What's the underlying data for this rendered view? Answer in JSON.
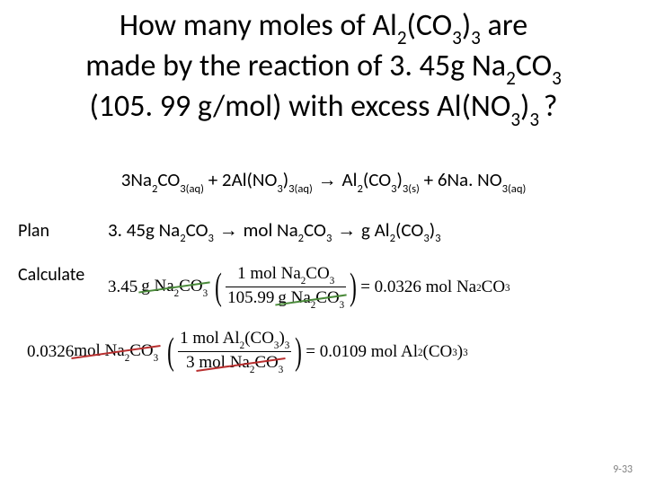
{
  "colors": {
    "text": "#000000",
    "footer": "#808080",
    "strike_green": "#4a8a3a",
    "strike_red": "#b83030",
    "background": "#ffffff"
  },
  "title": {
    "fontsize_pt": 34,
    "line1_a": "How many moles of Al",
    "line1_sub1": "2",
    "line1_b": "(CO",
    "line1_sub2": "3",
    "line1_c": ")",
    "line1_sub3": "3",
    "line1_d": " are",
    "line2_a": "made by the reaction of 3. 45g  Na",
    "line2_sub1": "2",
    "line2_b": "CO",
    "line2_sub2": "3",
    "line3_a": "(105. 99 g/mol) with excess Al(NO",
    "line3_sub1": "3",
    "line3_b": ")",
    "line3_sub2": "3 ",
    "line3_c": "?"
  },
  "equation": {
    "fontsize_pt": 21,
    "a": "3Na",
    "a_s1": "2",
    "b": "CO",
    "b_s1": "3(aq)",
    "c": " + 2Al(NO",
    "c_s1": "3",
    "d": ")",
    "d_s1": "3(aq)",
    "arrow": " → ",
    "e": "Al",
    "e_s1": "2",
    "f": "(CO",
    "f_s1": "3",
    "g": ")",
    "g_s1": "3(s)",
    "h": " + 6Na. NO",
    "h_s1": "3(aq)"
  },
  "plan": {
    "label": "Plan",
    "fontsize_pt": 21,
    "a": "3. 45g Na",
    "a_s1": "2",
    "b": "CO",
    "b_s1": "3",
    "arr1": " → ",
    "c": "mol Na",
    "c_s1": "2",
    "d": "CO",
    "d_s1": "3",
    "arr2": " → ",
    "e": "g Al",
    "e_s1": "2",
    "f": "(CO",
    "f_s1": "3",
    "g": ")",
    "g_s1": "3"
  },
  "calculate": {
    "label": "Calculate",
    "fontsize_pt": 19,
    "line1": {
      "lhs_a": "3.45",
      "lhs_unit_a": "g",
      "lhs_b": " Na",
      "lhs_s1": "2",
      "lhs_c": "CO",
      "lhs_s2": "3",
      "num_a": "1 mol Na",
      "num_s1": "2",
      "num_b": "CO",
      "num_s2": "3",
      "den_a": "105.99",
      "den_unit": "g",
      "den_b": " Na",
      "den_s1": "2",
      "den_c": "CO",
      "den_s2": "3",
      "rhs_eq": " = 0.0326 mol Na",
      "rhs_s1": "2",
      "rhs_b": "CO",
      "rhs_s2": "3",
      "strike_color": "#4a8a3a"
    },
    "line2": {
      "lhs_a": "0.0326 ",
      "lhs_unit": "mol Na",
      "lhs_s1": "2",
      "lhs_b": "CO",
      "lhs_s2": "3",
      "num_a": "1 mol Al",
      "num_s1": "2",
      "num_b": "(CO",
      "num_s2": "3",
      "num_c": ")",
      "num_s3": "3",
      "den_a": "3 ",
      "den_unit": "mol Na",
      "den_s1": "2",
      "den_b": "CO",
      "den_s2": "3",
      "rhs_eq": " = 0.0109 mol Al",
      "rhs_s1": "2",
      "rhs_b": "(CO",
      "rhs_s2": "3",
      "rhs_c": ")",
      "rhs_s3": "3",
      "strike_color": "#b83030"
    }
  },
  "footer": {
    "text": "9-33",
    "fontsize_pt": 12
  }
}
